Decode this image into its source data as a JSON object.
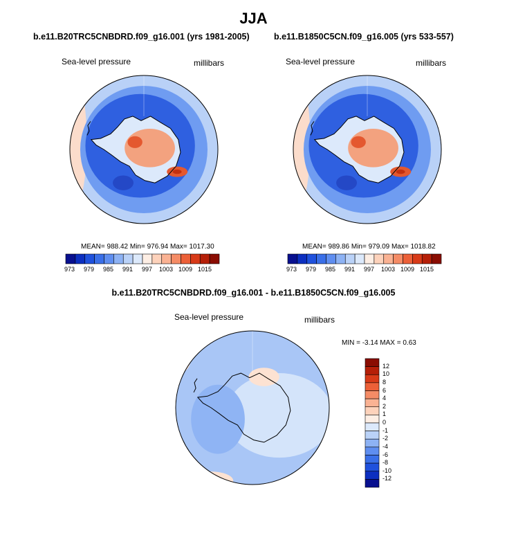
{
  "figure": {
    "title": "JJA"
  },
  "panels": [
    {
      "case_title": "b.e11.B20TRC5CNBDRD.f09_g16.001 (yrs 1981-2005)",
      "field_label": "Sea-level pressure",
      "units_label": "millibars",
      "stats_text": "MEAN= 988.42  Min= 976.94  Max= 1017.30",
      "stats": {
        "mean": 988.42,
        "min": 976.94,
        "max": 1017.3
      }
    },
    {
      "case_title": "b.e11.B1850C5CN.f09_g16.005 (yrs 533-557)",
      "field_label": "Sea-level pressure",
      "units_label": "millibars",
      "stats_text": "MEAN= 989.86  Min= 979.09  Max= 1018.82",
      "stats": {
        "mean": 989.86,
        "min": 979.09,
        "max": 1018.82
      }
    }
  ],
  "difference": {
    "title": "b.e11.B20TRC5CNBDRD.f09_g16.001 - b.e11.B1850C5CN.f09_g16.005",
    "field_label": "Sea-level pressure",
    "units_label": "millibars",
    "minmax_text": "MIN =  -3.14  MAX =   0.63",
    "stats": {
      "min": -3.14,
      "max": 0.63
    }
  },
  "colorbar_field": {
    "labels": [
      "973",
      "979",
      "985",
      "991",
      "997",
      "1003",
      "1009",
      "1015"
    ],
    "colors": [
      "#08108f",
      "#0c2fc0",
      "#1f51dd",
      "#3a6fe8",
      "#5f8ef0",
      "#8db2f4",
      "#bad2f8",
      "#dce9fb",
      "#fdeee4",
      "#fdd2bb",
      "#fab293",
      "#f58c66",
      "#ec6038",
      "#d83a18",
      "#b51f08",
      "#8a0d02"
    ]
  },
  "colorbar_diff": {
    "labels": [
      "12",
      "10",
      "8",
      "6",
      "4",
      "2",
      "1",
      "0",
      "-1",
      "-2",
      "-4",
      "-6",
      "-8",
      "-10",
      "-12"
    ],
    "colors": [
      "#8a0d02",
      "#b51f08",
      "#d83a18",
      "#ec6038",
      "#f58c66",
      "#fab293",
      "#fdd2bb",
      "#fdeee4",
      "#dce9fb",
      "#bad2f8",
      "#8db2f4",
      "#5f8ef0",
      "#3a6fe8",
      "#1f51dd",
      "#0c2fc0",
      "#08108f"
    ]
  },
  "map_colors": {
    "land_outline": "#000000",
    "deep_low": "#2f60e0",
    "mid_low": "#6f9cf1",
    "light_low": "#b9d1f7",
    "pale": "#dce9fb",
    "warm_pale": "#fbdccb",
    "warm": "#f3a27f",
    "hot": "#e4582f",
    "very_hot": "#c4300f",
    "diff_base": "#a9c6f6",
    "diff_pale": "#d4e4fa",
    "diff_mid": "#8fb4f4",
    "diff_warm": "#fde2d2"
  }
}
